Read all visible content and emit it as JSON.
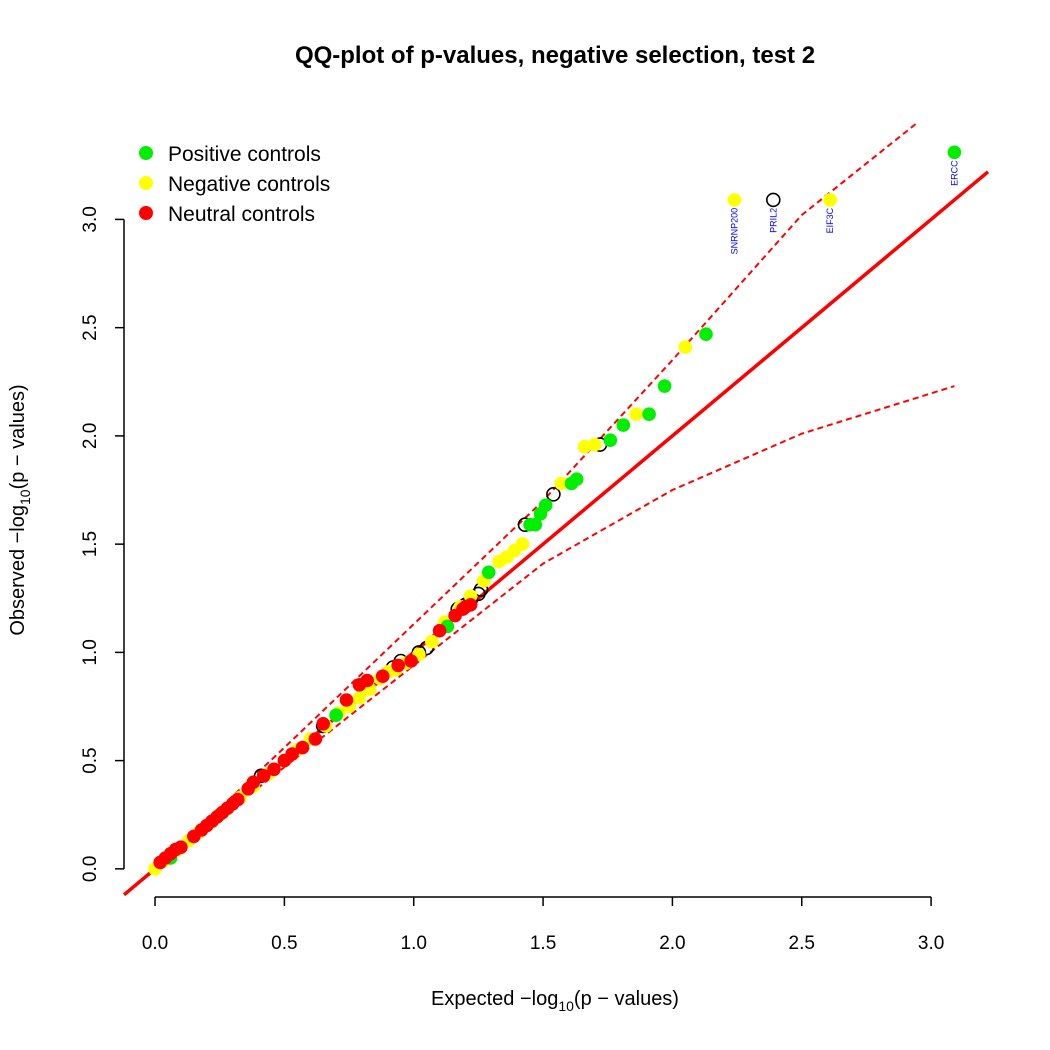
{
  "chart_data": {
    "type": "scatter",
    "title": "QQ-plot of p-values, negative selection, test 2",
    "xlabel": {
      "prefix": "Expected −log",
      "sub": "10",
      "suffix": "(p − values)"
    },
    "ylabel": {
      "prefix": "Observed −log",
      "sub": "10",
      "suffix": "(p − values)"
    },
    "xlim": [
      -0.12,
      3.22
    ],
    "ylim": [
      -0.13,
      3.45
    ],
    "xticks": [
      0,
      0.5,
      1,
      1.5,
      2,
      2.5,
      3
    ],
    "xtick_labels": [
      "0.0",
      "0.5",
      "1.0",
      "1.5",
      "2.0",
      "2.5",
      "3.0"
    ],
    "yticks": [
      0,
      0.5,
      1,
      1.5,
      2,
      2.5,
      3
    ],
    "ytick_labels": [
      "0.0",
      "0.5",
      "1.0",
      "1.5",
      "2.0",
      "2.5",
      "3.0"
    ],
    "legend": {
      "position": "top-left",
      "items": [
        {
          "label": "Positive controls",
          "color": "#00ee00"
        },
        {
          "label": "Negative controls",
          "color": "#ffff00"
        },
        {
          "label": "Neutral controls",
          "color": "#ff0000"
        }
      ]
    },
    "reference_line": {
      "slope": 1,
      "intercept": 0,
      "color": "#ff0000"
    },
    "confidence_band": {
      "color": "#ff0000",
      "upper": [
        [
          0,
          0
        ],
        [
          0.5,
          0.56
        ],
        [
          1.0,
          1.13
        ],
        [
          1.5,
          1.7
        ],
        [
          2.0,
          2.35
        ],
        [
          2.5,
          3.02
        ],
        [
          2.95,
          3.45
        ]
      ],
      "lower": [
        [
          0,
          0
        ],
        [
          0.5,
          0.47
        ],
        [
          1.0,
          0.94
        ],
        [
          1.5,
          1.41
        ],
        [
          2.0,
          1.75
        ],
        [
          2.5,
          2.01
        ],
        [
          3.09,
          2.23
        ]
      ]
    },
    "series": [
      {
        "name": "Positive controls",
        "color": "#00ee00",
        "x": [
          1.13,
          1.29,
          1.45,
          1.47,
          1.49,
          1.51,
          1.61,
          1.63,
          1.76,
          1.81,
          1.91,
          1.97,
          2.13,
          3.09,
          0.7,
          0.25,
          0.06
        ],
        "y": [
          1.12,
          1.37,
          1.59,
          1.59,
          1.64,
          1.68,
          1.78,
          1.8,
          1.98,
          2.05,
          2.1,
          2.23,
          2.47,
          3.31,
          0.71,
          0.25,
          0.05
        ]
      },
      {
        "name": "Negative controls",
        "color": "#ffff00",
        "x": [
          0,
          0.04,
          0.09,
          0.13,
          0.17,
          0.22,
          0.27,
          0.33,
          0.38,
          0.44,
          0.5,
          0.55,
          0.6,
          0.66,
          0.71,
          0.75,
          0.79,
          0.83,
          0.87,
          0.9,
          0.93,
          0.97,
          1.02,
          1.07,
          1.12,
          1.18,
          1.22,
          1.27,
          1.33,
          1.36,
          1.39,
          1.42,
          1.57,
          1.66,
          1.7,
          1.86,
          2.05,
          2.24,
          2.61
        ],
        "y": [
          0.0,
          0.04,
          0.09,
          0.13,
          0.17,
          0.22,
          0.27,
          0.33,
          0.38,
          0.44,
          0.5,
          0.55,
          0.6,
          0.66,
          0.72,
          0.75,
          0.79,
          0.83,
          0.88,
          0.91,
          0.92,
          0.95,
          0.99,
          1.05,
          1.14,
          1.21,
          1.26,
          1.33,
          1.42,
          1.44,
          1.47,
          1.5,
          1.78,
          1.95,
          1.96,
          2.1,
          2.41,
          3.09,
          3.09
        ]
      },
      {
        "name": "Neutral controls",
        "color": "#ff0000",
        "x": [
          0.02,
          0.04,
          0.06,
          0.08,
          0.1,
          0.15,
          0.18,
          0.2,
          0.22,
          0.24,
          0.26,
          0.28,
          0.3,
          0.32,
          0.36,
          0.38,
          0.42,
          0.46,
          0.5,
          0.53,
          0.57,
          0.62,
          0.65,
          0.74,
          0.79,
          0.82,
          0.88,
          0.94,
          0.99,
          1.1,
          1.16,
          1.19,
          1.2,
          1.22
        ],
        "y": [
          0.03,
          0.05,
          0.07,
          0.09,
          0.1,
          0.15,
          0.18,
          0.2,
          0.22,
          0.24,
          0.26,
          0.28,
          0.3,
          0.32,
          0.37,
          0.4,
          0.43,
          0.46,
          0.5,
          0.53,
          0.56,
          0.6,
          0.67,
          0.78,
          0.85,
          0.87,
          0.89,
          0.94,
          0.96,
          1.1,
          1.17,
          1.2,
          1.21,
          1.22
        ]
      },
      {
        "name": "",
        "color": "none",
        "x": [
          0.92,
          0.95,
          1.02,
          1.05,
          1.17,
          1.2,
          1.22,
          1.25,
          1.26,
          1.43,
          1.54,
          1.72,
          2.39,
          0.65,
          0.41
        ],
        "y": [
          0.93,
          0.96,
          1.0,
          1.02,
          1.2,
          1.22,
          1.24,
          1.27,
          1.29,
          1.59,
          1.73,
          1.96,
          3.09,
          0.66,
          0.43
        ]
      }
    ],
    "annotations": [
      {
        "text": "SNRNP200",
        "x": 2.24,
        "color": "#0000ff"
      },
      {
        "text": "PRIL2",
        "x": 2.39,
        "color": "#0000ff"
      },
      {
        "text": "EIF3C",
        "x": 2.61,
        "color": "#0000ff"
      },
      {
        "text": "ERCC",
        "x": 3.09,
        "color": "#0000ff"
      }
    ]
  }
}
